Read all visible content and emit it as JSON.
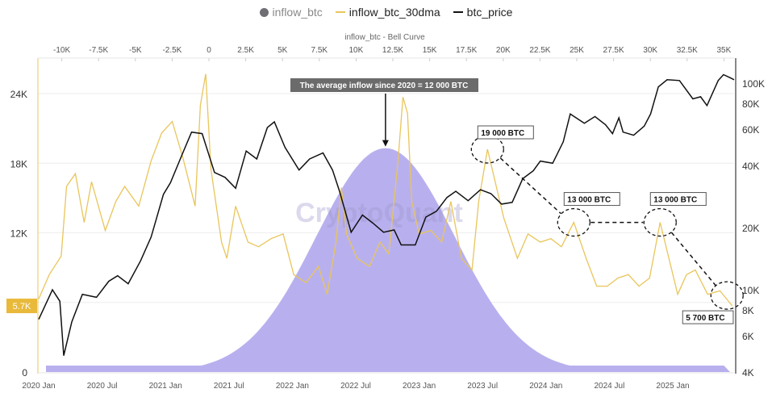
{
  "legend": [
    {
      "name": "inflow_btc",
      "color": "#6e6e73",
      "marker": "dot"
    },
    {
      "name": "inflow_btc_30dma",
      "color": "#e9c55b",
      "marker": "line"
    },
    {
      "name": "btc_price",
      "color": "#111111",
      "marker": "line"
    }
  ],
  "watermark": "CryptoQuant",
  "chart_data": {
    "type": "line",
    "top_axis": {
      "title": "inflow_btc - Bell Curve",
      "ticks": [
        "-10K",
        "-7.5K",
        "-5K",
        "-2.5K",
        "0",
        "2.5K",
        "5K",
        "7.5K",
        "10K",
        "12.5K",
        "15K",
        "17.5K",
        "20K",
        "22.5K",
        "25K",
        "27.5K",
        "30K",
        "32.5K",
        "35K"
      ],
      "range": [
        -11500,
        35500
      ]
    },
    "x_axis": {
      "ticks": [
        "2020 Jan",
        "2020 Jul",
        "2021 Jan",
        "2021 Jul",
        "2022 Jan",
        "2022 Jul",
        "2023 Jan",
        "2023 Jul",
        "2024 Jan",
        "2024 Jul",
        "2025 Jan"
      ]
    },
    "left_axis": {
      "ticks": [
        "0",
        "12K",
        "18K",
        "24K"
      ],
      "range": [
        0,
        27000
      ],
      "highlight": {
        "label": "5.7K",
        "value": 5700,
        "color": "#e9b93a"
      }
    },
    "right_axis": {
      "scale": "log",
      "ticks": [
        "4K",
        "6K",
        "8K",
        "10K",
        "20K",
        "40K",
        "60K",
        "80K",
        "100K"
      ],
      "range": [
        4000,
        125000
      ]
    },
    "grid": true,
    "bell_curve": {
      "mean": 12000,
      "sd": 4700,
      "peak": 19300,
      "color": "#b8b0ee"
    },
    "series": [
      {
        "name": "inflow_btc_30dma",
        "axis": "left",
        "color": "#e9c55b",
        "points": [
          [
            "2020-01-01",
            6300
          ],
          [
            "2020-02-01",
            8400
          ],
          [
            "2020-03-05",
            10000
          ],
          [
            "2020-03-20",
            16000
          ],
          [
            "2020-04-15",
            17100
          ],
          [
            "2020-05-10",
            12900
          ],
          [
            "2020-06-01",
            16400
          ],
          [
            "2020-07-10",
            12200
          ],
          [
            "2020-08-10",
            14700
          ],
          [
            "2020-09-05",
            16000
          ],
          [
            "2020-10-15",
            14300
          ],
          [
            "2020-11-20",
            18200
          ],
          [
            "2020-12-20",
            20600
          ],
          [
            "2021-01-20",
            21600
          ],
          [
            "2021-02-20",
            18500
          ],
          [
            "2021-03-25",
            14300
          ],
          [
            "2021-04-10",
            23000
          ],
          [
            "2021-04-25",
            25700
          ],
          [
            "2021-05-10",
            17500
          ],
          [
            "2021-06-10",
            11200
          ],
          [
            "2021-06-25",
            9800
          ],
          [
            "2021-07-20",
            14300
          ],
          [
            "2021-08-25",
            11200
          ],
          [
            "2021-09-25",
            10800
          ],
          [
            "2021-11-01",
            11500
          ],
          [
            "2021-12-05",
            11900
          ],
          [
            "2022-01-05",
            8400
          ],
          [
            "2022-02-10",
            7700
          ],
          [
            "2022-03-15",
            9100
          ],
          [
            "2022-04-10",
            6700
          ],
          [
            "2022-05-05",
            11200
          ],
          [
            "2022-05-20",
            15900
          ],
          [
            "2022-06-05",
            11900
          ],
          [
            "2022-07-05",
            9800
          ],
          [
            "2022-08-10",
            9100
          ],
          [
            "2022-09-10",
            11200
          ],
          [
            "2022-10-05",
            10200
          ],
          [
            "2022-11-01",
            18200
          ],
          [
            "2022-11-15",
            23700
          ],
          [
            "2022-11-28",
            22300
          ],
          [
            "2022-12-10",
            14700
          ],
          [
            "2023-01-01",
            11900
          ],
          [
            "2023-02-05",
            12200
          ],
          [
            "2023-03-05",
            11200
          ],
          [
            "2023-04-01",
            14700
          ],
          [
            "2023-05-01",
            9800
          ],
          [
            "2023-06-01",
            8800
          ],
          [
            "2023-06-20",
            14700
          ],
          [
            "2023-07-15",
            19200
          ],
          [
            "2023-08-10",
            16000
          ],
          [
            "2023-09-01",
            13300
          ],
          [
            "2023-10-10",
            9800
          ],
          [
            "2023-11-10",
            11900
          ],
          [
            "2023-12-15",
            11200
          ],
          [
            "2024-01-15",
            11500
          ],
          [
            "2024-02-15",
            10800
          ],
          [
            "2024-03-20",
            12900
          ],
          [
            "2024-04-25",
            9800
          ],
          [
            "2024-05-25",
            7400
          ],
          [
            "2024-06-25",
            7400
          ],
          [
            "2024-07-25",
            8100
          ],
          [
            "2024-08-25",
            8400
          ],
          [
            "2024-09-25",
            7400
          ],
          [
            "2024-10-25",
            8100
          ],
          [
            "2024-11-25",
            12900
          ],
          [
            "2024-12-20",
            9800
          ],
          [
            "2025-01-15",
            6700
          ],
          [
            "2025-02-10",
            8400
          ],
          [
            "2025-03-05",
            8800
          ],
          [
            "2025-04-10",
            6700
          ],
          [
            "2025-05-15",
            7000
          ],
          [
            "2025-06-20",
            5700
          ]
        ]
      },
      {
        "name": "btc_price",
        "axis": "right",
        "color": "#111111",
        "points": [
          [
            "2020-01-01",
            7200
          ],
          [
            "2020-02-10",
            10000
          ],
          [
            "2020-03-01",
            8800
          ],
          [
            "2020-03-12",
            4800
          ],
          [
            "2020-04-05",
            7000
          ],
          [
            "2020-05-05",
            9500
          ],
          [
            "2020-06-15",
            9200
          ],
          [
            "2020-07-20",
            11000
          ],
          [
            "2020-08-15",
            11700
          ],
          [
            "2020-09-15",
            10700
          ],
          [
            "2020-10-20",
            13800
          ],
          [
            "2020-11-20",
            18000
          ],
          [
            "2020-12-25",
            29000
          ],
          [
            "2021-01-15",
            33000
          ],
          [
            "2021-02-20",
            46000
          ],
          [
            "2021-03-15",
            58000
          ],
          [
            "2021-04-15",
            57000
          ],
          [
            "2021-05-20",
            37000
          ],
          [
            "2021-06-20",
            35000
          ],
          [
            "2021-07-20",
            31000
          ],
          [
            "2021-08-20",
            47000
          ],
          [
            "2021-09-20",
            43000
          ],
          [
            "2021-10-20",
            61000
          ],
          [
            "2021-11-10",
            65000
          ],
          [
            "2021-12-10",
            49000
          ],
          [
            "2022-01-20",
            38000
          ],
          [
            "2022-02-20",
            43000
          ],
          [
            "2022-03-28",
            46000
          ],
          [
            "2022-04-25",
            38000
          ],
          [
            "2022-05-15",
            30000
          ],
          [
            "2022-06-18",
            19000
          ],
          [
            "2022-07-20",
            23000
          ],
          [
            "2022-08-20",
            21000
          ],
          [
            "2022-09-20",
            19000
          ],
          [
            "2022-10-20",
            19500
          ],
          [
            "2022-11-10",
            16500
          ],
          [
            "2022-12-20",
            16500
          ],
          [
            "2023-01-20",
            22500
          ],
          [
            "2023-02-20",
            24000
          ],
          [
            "2023-03-20",
            28000
          ],
          [
            "2023-04-15",
            30000
          ],
          [
            "2023-05-20",
            27000
          ],
          [
            "2023-06-25",
            30500
          ],
          [
            "2023-07-25",
            29200
          ],
          [
            "2023-08-25",
            26000
          ],
          [
            "2023-09-25",
            26500
          ],
          [
            "2023-10-25",
            34500
          ],
          [
            "2023-11-25",
            37700
          ],
          [
            "2023-12-15",
            42000
          ],
          [
            "2024-01-20",
            41000
          ],
          [
            "2024-02-20",
            52000
          ],
          [
            "2024-03-10",
            71000
          ],
          [
            "2024-04-20",
            64000
          ],
          [
            "2024-05-20",
            69000
          ],
          [
            "2024-06-20",
            63000
          ],
          [
            "2024-07-10",
            57000
          ],
          [
            "2024-07-28",
            68000
          ],
          [
            "2024-08-10",
            58000
          ],
          [
            "2024-09-10",
            56000
          ],
          [
            "2024-10-10",
            62000
          ],
          [
            "2024-10-28",
            71000
          ],
          [
            "2024-11-20",
            96000
          ],
          [
            "2024-12-15",
            104000
          ],
          [
            "2025-01-20",
            103000
          ],
          [
            "2025-02-28",
            84000
          ],
          [
            "2025-03-20",
            86000
          ],
          [
            "2025-04-08",
            78000
          ],
          [
            "2025-05-10",
            103000
          ],
          [
            "2025-05-25",
            110000
          ],
          [
            "2025-06-15",
            106000
          ],
          [
            "2025-06-25",
            104000
          ]
        ]
      }
    ],
    "annotations": [
      {
        "text": "The average inflow since 2020 = 12 000 BTC",
        "type": "callout-arrow"
      },
      {
        "text": "19 000 BTC",
        "date": "2023-07-15",
        "value": 19200
      },
      {
        "text": "13 000 BTC",
        "date": "2024-03-20",
        "value": 12900
      },
      {
        "text": "13 000 BTC",
        "date": "2024-11-25",
        "value": 12900
      },
      {
        "text": "5 700 BTC",
        "date": "2025-06-05",
        "value": 6600
      }
    ]
  }
}
